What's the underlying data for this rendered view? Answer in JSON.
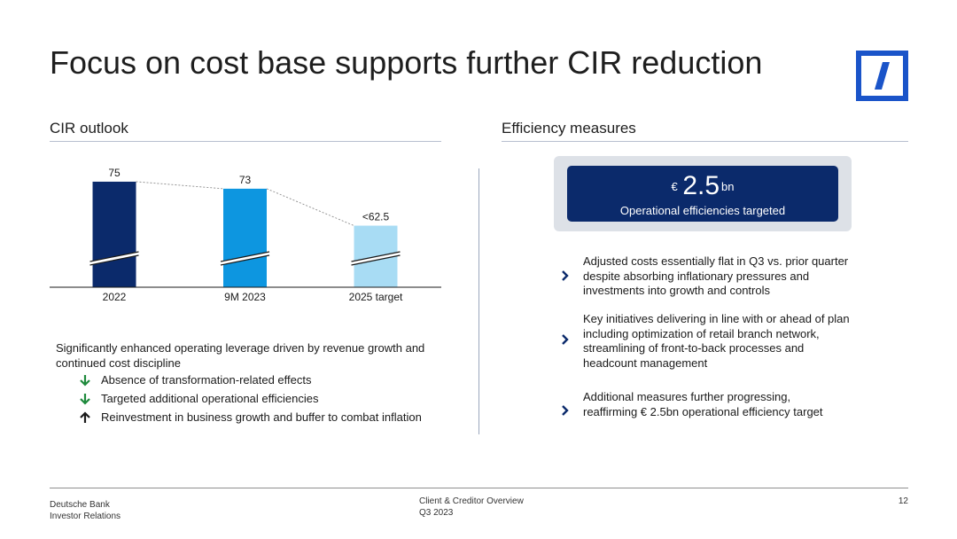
{
  "title": "Focus on cost base supports further CIR reduction",
  "left": {
    "heading": "CIR outlook",
    "intro": "Significantly enhanced operating leverage driven by revenue growth and continued cost discipline",
    "bullets": [
      {
        "text": "Absence of transformation-related effects",
        "icon": "arrow-down",
        "color": "#1e8a3c"
      },
      {
        "text": "Targeted additional operational efficiencies",
        "icon": "arrow-down",
        "color": "#1e8a3c"
      },
      {
        "text": "Reinvestment in business growth and buffer to combat inflation",
        "icon": "arrow-up",
        "color": "#1a1a1a"
      }
    ]
  },
  "right": {
    "heading": "Efficiency measures",
    "kpi": {
      "currency": "€",
      "value": "2.5",
      "unit": "bn",
      "label": "Operational efficiencies targeted"
    },
    "measures": [
      "Adjusted costs essentially flat in Q3 vs. prior quarter despite absorbing inflationary pressures and investments into growth and controls",
      "Key initiatives delivering in line with or ahead of plan including optimization of retail branch network, streamlining of front-to-back processes and headcount management",
      "Additional measures further progressing, reaffirming € 2.5bn operational efficiency target"
    ]
  },
  "chart_data": {
    "type": "bar",
    "categories": [
      "2022",
      "9M 2023",
      "2025 target"
    ],
    "values": [
      75,
      73,
      62.5
    ],
    "labels": [
      "75",
      "73",
      "<62.5"
    ],
    "colors": [
      "#0b2a6b",
      "#0d96e0",
      "#a8dcf4"
    ],
    "axis_break": true,
    "ylim": [
      45,
      77
    ],
    "title": "",
    "xlabel": "",
    "ylabel": ""
  },
  "colors": {
    "brand": "#0b2a6b",
    "brand_accent": "#1a54c9",
    "rule": "#b8bfd0"
  },
  "footer": {
    "company": "Deutsche Bank",
    "department": "Investor Relations",
    "doc_title": "Client & Creditor Overview",
    "period": "Q3 2023",
    "page": "12"
  }
}
